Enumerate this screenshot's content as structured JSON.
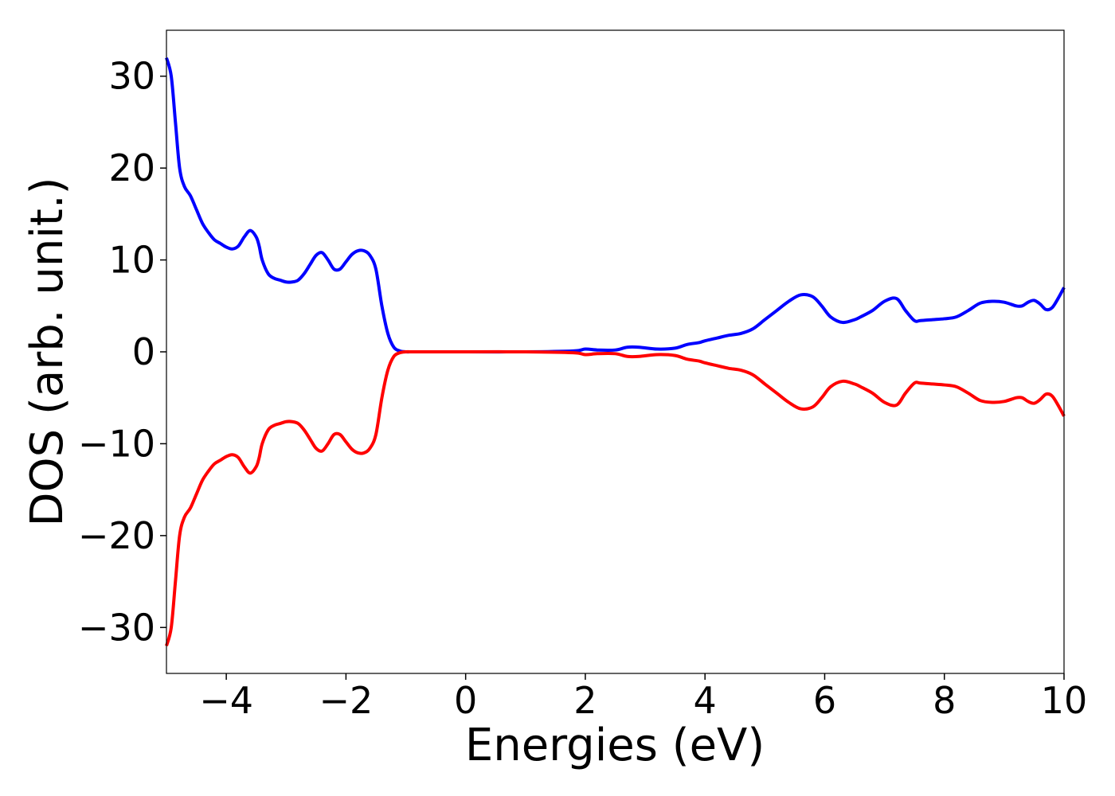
{
  "chart_data": {
    "type": "line",
    "xlabel": "Energies (eV)",
    "ylabel": "DOS (arb. unit.)",
    "xlim": [
      -5,
      10
    ],
    "ylim": [
      -35,
      35
    ],
    "grid": false,
    "legend": "none",
    "x_ticks": [
      -4,
      -2,
      0,
      2,
      4,
      6,
      8,
      10
    ],
    "x_tick_labels": [
      "−4",
      "−2",
      "0",
      "2",
      "4",
      "6",
      "8",
      "10"
    ],
    "y_ticks": [
      30,
      20,
      10,
      0,
      -10,
      -20,
      -30
    ],
    "y_tick_labels": [
      "30",
      "20",
      "10",
      "0",
      "−10",
      "−20",
      "−30"
    ],
    "series": [
      {
        "color": "#0000ff",
        "x": [
          -5.0,
          -4.92,
          -4.85,
          -4.78,
          -4.7,
          -4.6,
          -4.5,
          -4.4,
          -4.3,
          -4.2,
          -4.1,
          -4.0,
          -3.9,
          -3.8,
          -3.7,
          -3.6,
          -3.5,
          -3.45,
          -3.4,
          -3.3,
          -3.2,
          -3.1,
          -3.0,
          -2.9,
          -2.8,
          -2.7,
          -2.6,
          -2.5,
          -2.4,
          -2.3,
          -2.2,
          -2.1,
          -2.0,
          -1.9,
          -1.8,
          -1.7,
          -1.6,
          -1.5,
          -1.4,
          -1.3,
          -1.2,
          -1.1,
          -1.0,
          -0.9,
          -0.8,
          -0.7,
          -0.6,
          -0.5,
          0.0,
          1.0,
          1.8,
          2.0,
          2.2,
          2.5,
          2.7,
          2.9,
          3.2,
          3.5,
          3.7,
          3.9,
          4.0,
          4.2,
          4.4,
          4.6,
          4.8,
          5.0,
          5.2,
          5.4,
          5.6,
          5.8,
          5.95,
          6.1,
          6.3,
          6.5,
          6.6,
          6.8,
          7.0,
          7.2,
          7.35,
          7.5,
          7.6,
          7.8,
          8.0,
          8.2,
          8.4,
          8.6,
          8.8,
          9.0,
          9.2,
          9.3,
          9.4,
          9.5,
          9.6,
          9.7,
          9.8,
          9.9,
          10.0
        ],
        "values": [
          32.0,
          30.0,
          25.0,
          20.0,
          18.0,
          17.0,
          15.5,
          14.0,
          13.0,
          12.2,
          11.8,
          11.4,
          11.2,
          11.5,
          12.5,
          13.2,
          12.5,
          11.5,
          10.0,
          8.5,
          8.0,
          7.8,
          7.6,
          7.6,
          7.8,
          8.5,
          9.5,
          10.5,
          10.8,
          10.0,
          9.0,
          9.0,
          9.8,
          10.6,
          11.0,
          11.0,
          10.5,
          9.0,
          5.0,
          2.0,
          0.5,
          0.1,
          0.0,
          0.0,
          0.0,
          0.0,
          0.0,
          0.0,
          0.0,
          0.0,
          0.1,
          0.3,
          0.2,
          0.2,
          0.5,
          0.5,
          0.3,
          0.4,
          0.8,
          1.0,
          1.2,
          1.5,
          1.8,
          2.0,
          2.5,
          3.5,
          4.5,
          5.5,
          6.2,
          6.0,
          5.0,
          3.8,
          3.2,
          3.5,
          3.8,
          4.5,
          5.5,
          5.8,
          4.5,
          3.4,
          3.4,
          3.5,
          3.6,
          3.8,
          4.5,
          5.3,
          5.5,
          5.4,
          5.0,
          5.0,
          5.4,
          5.6,
          5.2,
          4.6,
          4.8,
          5.8,
          7.0
        ]
      },
      {
        "color": "#ff0000",
        "x": [
          -5.0,
          -4.92,
          -4.85,
          -4.78,
          -4.7,
          -4.6,
          -4.5,
          -4.4,
          -4.3,
          -4.2,
          -4.1,
          -4.0,
          -3.9,
          -3.8,
          -3.7,
          -3.6,
          -3.5,
          -3.45,
          -3.4,
          -3.3,
          -3.2,
          -3.1,
          -3.0,
          -2.9,
          -2.8,
          -2.7,
          -2.6,
          -2.5,
          -2.4,
          -2.3,
          -2.2,
          -2.1,
          -2.0,
          -1.9,
          -1.8,
          -1.7,
          -1.6,
          -1.5,
          -1.4,
          -1.3,
          -1.2,
          -1.1,
          -1.0,
          -0.9,
          -0.8,
          -0.7,
          -0.6,
          -0.5,
          0.0,
          1.0,
          1.8,
          2.0,
          2.2,
          2.5,
          2.7,
          2.9,
          3.2,
          3.5,
          3.7,
          3.9,
          4.0,
          4.2,
          4.4,
          4.6,
          4.8,
          5.0,
          5.2,
          5.4,
          5.6,
          5.8,
          5.95,
          6.1,
          6.3,
          6.5,
          6.6,
          6.8,
          7.0,
          7.2,
          7.35,
          7.5,
          7.6,
          7.8,
          8.0,
          8.2,
          8.4,
          8.6,
          8.8,
          9.0,
          9.2,
          9.3,
          9.4,
          9.5,
          9.6,
          9.7,
          9.8,
          9.9,
          10.0
        ],
        "values": [
          -32.0,
          -30.0,
          -25.0,
          -20.0,
          -18.0,
          -17.0,
          -15.5,
          -14.0,
          -13.0,
          -12.2,
          -11.8,
          -11.4,
          -11.2,
          -11.5,
          -12.5,
          -13.2,
          -12.5,
          -11.5,
          -10.0,
          -8.5,
          -8.0,
          -7.8,
          -7.6,
          -7.6,
          -7.8,
          -8.5,
          -9.5,
          -10.5,
          -10.8,
          -10.0,
          -9.0,
          -9.0,
          -9.8,
          -10.6,
          -11.0,
          -11.0,
          -10.5,
          -9.0,
          -5.0,
          -2.0,
          -0.5,
          -0.1,
          0.0,
          0.0,
          0.0,
          0.0,
          0.0,
          0.0,
          0.0,
          0.0,
          -0.1,
          -0.3,
          -0.2,
          -0.2,
          -0.5,
          -0.5,
          -0.3,
          -0.4,
          -0.8,
          -1.0,
          -1.2,
          -1.5,
          -1.8,
          -2.0,
          -2.5,
          -3.5,
          -4.5,
          -5.5,
          -6.2,
          -6.0,
          -5.0,
          -3.8,
          -3.2,
          -3.5,
          -3.8,
          -4.5,
          -5.5,
          -5.8,
          -4.5,
          -3.4,
          -3.4,
          -3.5,
          -3.6,
          -3.8,
          -4.5,
          -5.3,
          -5.5,
          -5.4,
          -5.0,
          -5.0,
          -5.4,
          -5.6,
          -5.2,
          -4.6,
          -4.8,
          -5.8,
          -7.0
        ]
      }
    ]
  }
}
